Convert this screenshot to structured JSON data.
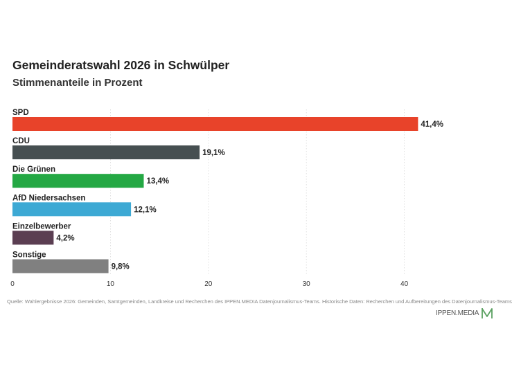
{
  "title": "Gemeinderatswahl 2026 in Schwülper",
  "subtitle": "Stimmenanteile in Prozent",
  "chart_data": {
    "type": "bar",
    "orientation": "horizontal",
    "title": "Gemeinderatswahl 2026 in Schwülper",
    "subtitle": "Stimmenanteile in Prozent",
    "categories": [
      "SPD",
      "CDU",
      "Die Grünen",
      "AfD Niedersachsen",
      "Einzelbewerber",
      "Sonstige"
    ],
    "values": [
      41.4,
      19.1,
      13.4,
      12.1,
      4.2,
      9.8
    ],
    "value_labels": [
      "41,4%",
      "19,1%",
      "13,4%",
      "12,1%",
      "4,2%",
      "9,8%"
    ],
    "colors": [
      "#e8432a",
      "#464f51",
      "#24a844",
      "#3da9d4",
      "#5b3e52",
      "#808080"
    ],
    "xlim": [
      0,
      50
    ],
    "xticks": [
      0,
      10,
      20,
      30,
      40
    ],
    "xtick_labels": [
      "0",
      "10",
      "20",
      "30",
      "40"
    ],
    "grid": "vertical dotted"
  },
  "source": "Quelle: Wahlergebnisse 2026: Gemeinden, Samtgemeinden, Landkreise und Recherchen des IPPEN.MEDIA Datenjournalismus-Teams. Historische Daten: Recherchen und Aufbereitungen des Datenjournalismus-Teams",
  "logo": {
    "text": "IPPEN.MEDIA",
    "color": "#5aa060"
  }
}
